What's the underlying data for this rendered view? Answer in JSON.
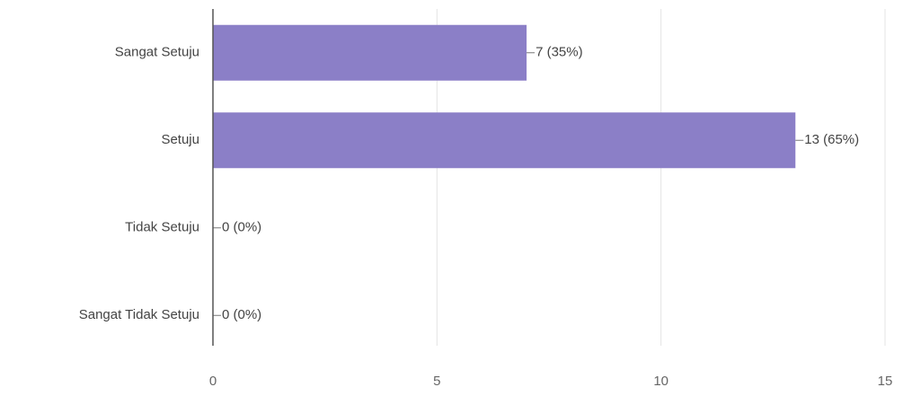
{
  "chart_data": {
    "type": "bar",
    "orientation": "horizontal",
    "categories": [
      "Sangat Setuju",
      "Setuju",
      "Tidak Setuju",
      "Sangat Tidak Setuju"
    ],
    "values": [
      7,
      13,
      0,
      0
    ],
    "value_labels": [
      "7 (35%)",
      "13 (65%)",
      "0 (0%)",
      "0 (0%)"
    ],
    "color": "#8b7fc7",
    "xlim": [
      0,
      15
    ],
    "xticks": [
      0,
      5,
      10,
      15
    ],
    "grid": true
  }
}
